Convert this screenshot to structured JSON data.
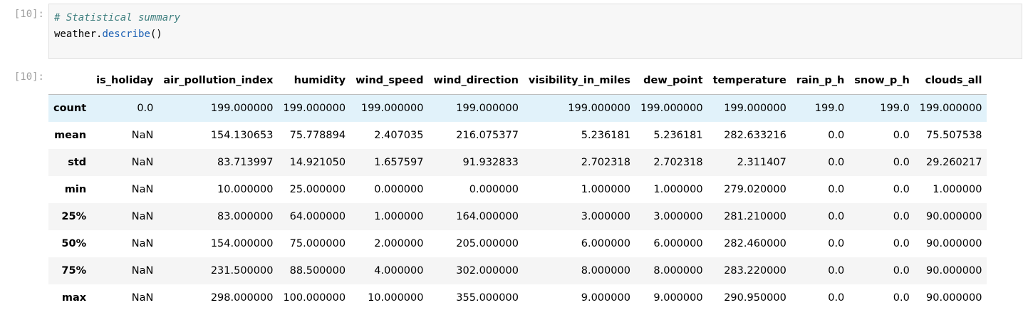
{
  "input_prompt": "[10]:",
  "output_prompt": "[10]:",
  "code": {
    "comment": "# Statistical summary",
    "object": "weather.",
    "method": "describe",
    "parens": "()"
  },
  "table": {
    "columns": [
      "",
      "is_holiday",
      "air_pollution_index",
      "humidity",
      "wind_speed",
      "wind_direction",
      "visibility_in_miles",
      "dew_point",
      "temperature",
      "rain_p_h",
      "snow_p_h",
      "clouds_all"
    ],
    "rows": [
      {
        "label": "count",
        "cells": [
          "0.0",
          "199.000000",
          "199.000000",
          "199.000000",
          "199.000000",
          "199.000000",
          "199.000000",
          "199.000000",
          "199.0",
          "199.0",
          "199.000000"
        ]
      },
      {
        "label": "mean",
        "cells": [
          "NaN",
          "154.130653",
          "75.778894",
          "2.407035",
          "216.075377",
          "5.236181",
          "5.236181",
          "282.633216",
          "0.0",
          "0.0",
          "75.507538"
        ]
      },
      {
        "label": "std",
        "cells": [
          "NaN",
          "83.713997",
          "14.921050",
          "1.657597",
          "91.932833",
          "2.702318",
          "2.702318",
          "2.311407",
          "0.0",
          "0.0",
          "29.260217"
        ]
      },
      {
        "label": "min",
        "cells": [
          "NaN",
          "10.000000",
          "25.000000",
          "0.000000",
          "0.000000",
          "1.000000",
          "1.000000",
          "279.020000",
          "0.0",
          "0.0",
          "1.000000"
        ]
      },
      {
        "label": "25%",
        "cells": [
          "NaN",
          "83.000000",
          "64.000000",
          "1.000000",
          "164.000000",
          "3.000000",
          "3.000000",
          "281.210000",
          "0.0",
          "0.0",
          "90.000000"
        ]
      },
      {
        "label": "50%",
        "cells": [
          "NaN",
          "154.000000",
          "75.000000",
          "2.000000",
          "205.000000",
          "6.000000",
          "6.000000",
          "282.460000",
          "0.0",
          "0.0",
          "90.000000"
        ]
      },
      {
        "label": "75%",
        "cells": [
          "NaN",
          "231.500000",
          "88.500000",
          "4.000000",
          "302.000000",
          "8.000000",
          "8.000000",
          "283.220000",
          "0.0",
          "0.0",
          "90.000000"
        ]
      },
      {
        "label": "max",
        "cells": [
          "NaN",
          "298.000000",
          "100.000000",
          "10.000000",
          "355.000000",
          "9.000000",
          "9.000000",
          "290.950000",
          "0.0",
          "0.0",
          "90.000000"
        ]
      }
    ],
    "highlighted_row": 0
  }
}
